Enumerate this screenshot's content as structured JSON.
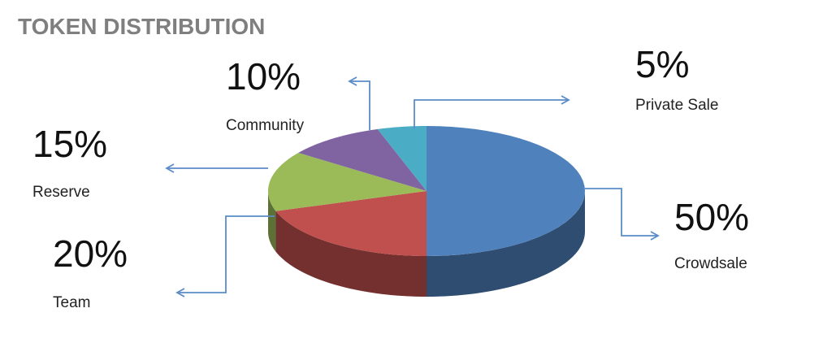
{
  "chart_data": {
    "type": "pie",
    "title": "TOKEN DISTRIBUTION",
    "categories": [
      "Crowdsale",
      "Team",
      "Reserve",
      "Community",
      "Private Sale"
    ],
    "values": [
      50,
      20,
      15,
      10,
      5
    ],
    "value_labels": [
      "50%",
      "20%",
      "15%",
      "10%",
      "5%"
    ],
    "colors": [
      "#4f81bd",
      "#c0504d",
      "#9bbb59",
      "#8064a2",
      "#4bacc6"
    ]
  }
}
